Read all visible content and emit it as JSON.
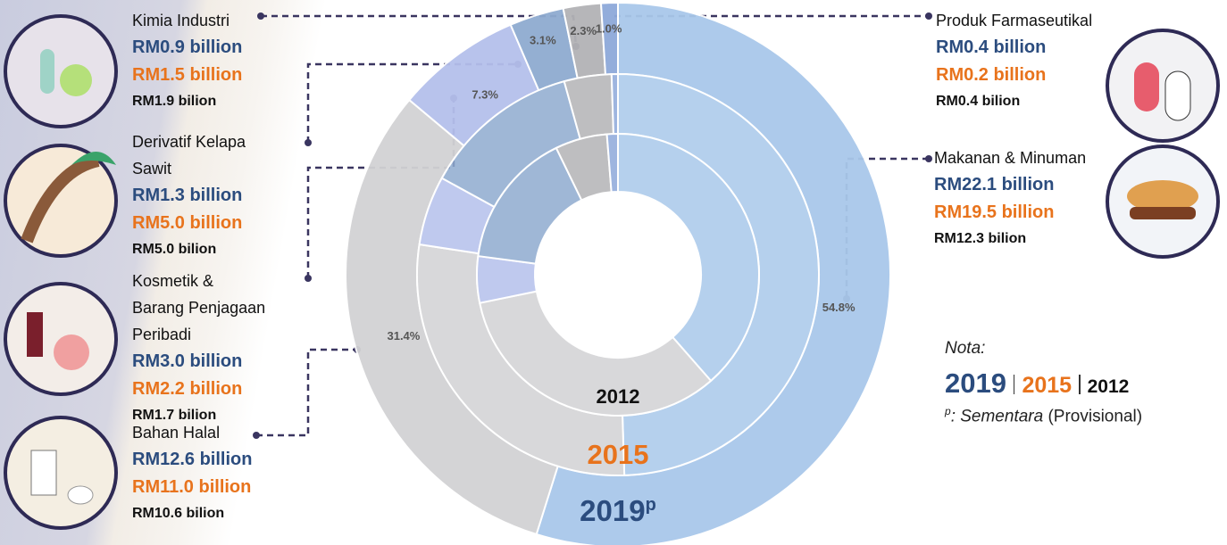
{
  "chart_data": {
    "type": "donut",
    "categories": [
      "Makanan & Minuman",
      "Bahan Halal",
      "Kosmetik & Barang Penjagaan Peribadi",
      "Derivatif Kelapa Sawit",
      "Kimia Industri",
      "Produk Farmaseutikal"
    ],
    "colors": [
      "#a9c8ea",
      "#d2d2d4",
      "#b5c0ec",
      "#8fabd0",
      "#b3b3b6",
      "#8ea9da"
    ],
    "series": [
      {
        "name": "2019",
        "marker": "p",
        "color": "#2b4c7e",
        "values": [
          22.1,
          12.6,
          3.0,
          1.3,
          0.9,
          0.4
        ],
        "value_labels": [
          "RM22.1 billion",
          "RM12.6 billion",
          "RM3.0 billion",
          "RM1.3 billion",
          "RM0.9 billion",
          "RM0.4 billion"
        ],
        "shares": [
          54.8,
          31.4,
          7.3,
          3.1,
          2.3,
          1.0
        ],
        "share_labels": [
          "54.8%",
          "31.4%",
          "7.3%",
          "3.1%",
          "2.3%",
          "1.0%"
        ]
      },
      {
        "name": "2015",
        "color": "#e8731c",
        "values": [
          19.5,
          11.0,
          2.2,
          5.0,
          1.5,
          0.2
        ],
        "value_labels": [
          "RM19.5 billion",
          "RM11.0 billion",
          "RM2.2 billion",
          "RM5.0 billion",
          "RM1.5 billion",
          "RM0.2 billion"
        ]
      },
      {
        "name": "2012",
        "color": "#111111",
        "values": [
          12.3,
          10.6,
          1.7,
          5.0,
          1.9,
          0.4
        ],
        "value_labels": [
          "RM12.3 bilion",
          "RM10.6 bilion",
          "RM1.7 bilion",
          "RM5.0 bilion",
          "RM1.9 bilion",
          "RM0.4 bilion"
        ]
      }
    ],
    "note": {
      "title": "Nota:",
      "marker": "p",
      "text": ": Sementara",
      "suffix": "(Provisional)"
    }
  }
}
